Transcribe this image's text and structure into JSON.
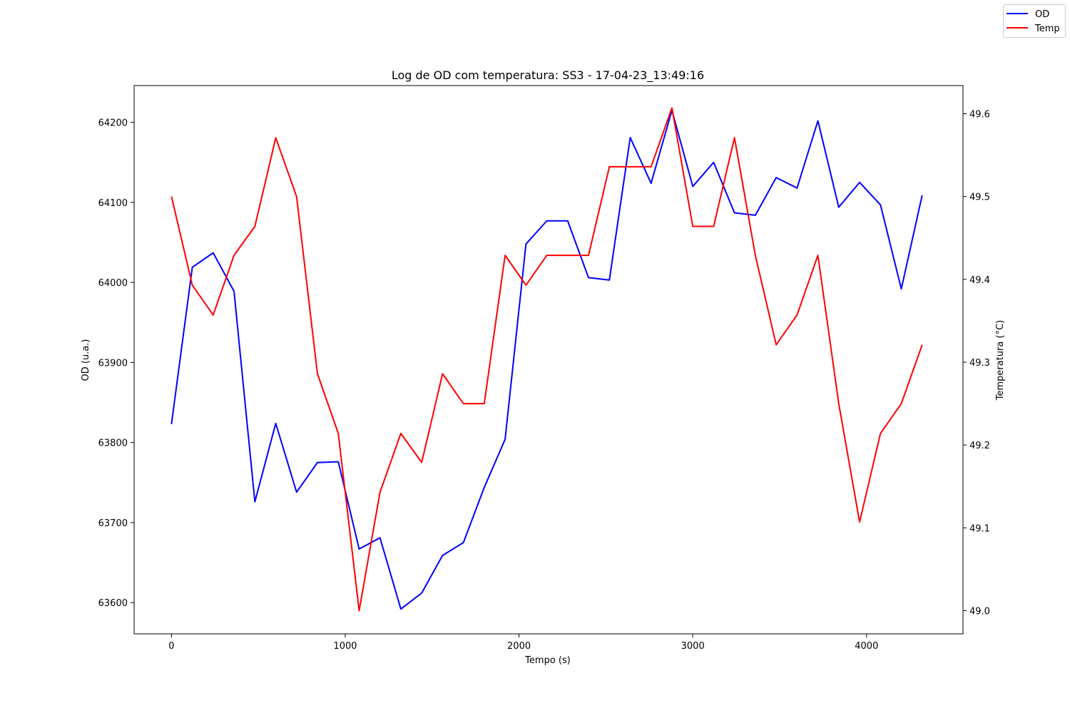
{
  "chart_data": {
    "type": "line",
    "title": "Log de OD com temperatura: SS3 - 17-04-23_13:49:16",
    "xlabel": "Tempo (s)",
    "ylabel": "OD (u.a.)",
    "y2label": "Temperatura (°C)",
    "xlim": [
      -215,
      4555
    ],
    "ylim": [
      63561,
      64246
    ],
    "y2lim": [
      48.972,
      49.634
    ],
    "xticks": [
      0,
      1000,
      2000,
      3000,
      4000
    ],
    "yticks": [
      63600,
      63700,
      63800,
      63900,
      64000,
      64100,
      64200
    ],
    "y2ticks": [
      49.0,
      49.1,
      49.2,
      49.3,
      49.4,
      49.5,
      49.6
    ],
    "xtick_labels": [
      "0",
      "1000",
      "2000",
      "3000",
      "4000"
    ],
    "ytick_labels": [
      "63600",
      "63700",
      "63800",
      "63900",
      "64000",
      "64100",
      "64200"
    ],
    "y2tick_labels": [
      "49.0",
      "49.1",
      "49.2",
      "49.3",
      "49.4",
      "49.5",
      "49.6"
    ],
    "legend_position": "top-right",
    "grid": false,
    "x": [
      0,
      120,
      240,
      360,
      480,
      600,
      720,
      840,
      960,
      1080,
      1200,
      1320,
      1440,
      1560,
      1680,
      1800,
      1920,
      2040,
      2160,
      2280,
      2400,
      2520,
      2640,
      2760,
      2880,
      3000,
      3120,
      3240,
      3360,
      3480,
      3600,
      3720,
      3840,
      3960,
      4080,
      4200,
      4320
    ],
    "series": [
      {
        "name": "OD",
        "axis": "left",
        "color": "#0000ff",
        "values": [
          63823,
          64019,
          64037,
          63989,
          63726,
          63824,
          63738,
          63775,
          63776,
          63667,
          63681,
          63592,
          63612,
          63659,
          63675,
          63744,
          63804,
          64048,
          64077,
          64077,
          64006,
          64003,
          64181,
          64124,
          64215,
          64120,
          64150,
          64087,
          64084,
          64131,
          64118,
          64202,
          64094,
          64125,
          64097,
          63992,
          64109
        ]
      },
      {
        "name": "Temp",
        "axis": "right",
        "color": "#ff0000",
        "values": [
          49.5,
          49.393,
          49.357,
          49.429,
          49.464,
          49.571,
          49.5,
          49.286,
          49.214,
          49.0,
          49.143,
          49.214,
          49.179,
          49.286,
          49.25,
          49.25,
          49.429,
          49.393,
          49.429,
          49.429,
          49.429,
          49.536,
          49.536,
          49.536,
          49.607,
          49.464,
          49.464,
          49.571,
          49.429,
          49.321,
          49.357,
          49.429,
          49.25,
          49.107,
          49.214,
          49.25,
          49.321
        ]
      }
    ]
  }
}
